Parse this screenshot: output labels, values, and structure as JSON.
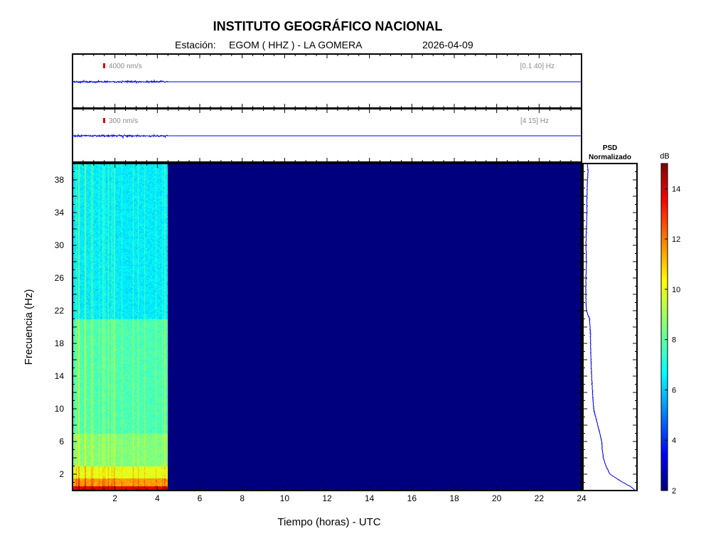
{
  "header": {
    "title": "INSTITUTO GEOGRÁFICO NACIONAL",
    "station_label": "Estación:",
    "station": "EGOM ( HHZ ) - LA GOMERA",
    "date": "2026-04-09"
  },
  "colors": {
    "trace": "#0000ee",
    "scale_marker": "#dd0000",
    "background_field": "#00007f"
  },
  "chart_data": [
    {
      "type": "line",
      "name": "waveform-broadband",
      "scale_label": "4000 nm/s",
      "filter_label": "[0.1 40] Hz",
      "x": [
        0,
        4.45,
        4.5,
        24
      ],
      "data_until_hours": 4.5,
      "xlim": [
        0,
        24
      ]
    },
    {
      "type": "line",
      "name": "waveform-filtered",
      "scale_label": "300 nm/s",
      "filter_label": "[4 15] Hz",
      "x": [
        0,
        4.45,
        4.5,
        24
      ],
      "data_until_hours": 4.5,
      "xlim": [
        0,
        24
      ]
    },
    {
      "type": "heatmap",
      "name": "spectrogram",
      "xlabel": "Tiempo (horas) - UTC",
      "ylabel": "Frecuencia  (Hz)",
      "xlim": [
        0,
        24
      ],
      "ylim": [
        0,
        40
      ],
      "xticks": [
        2,
        4,
        6,
        8,
        10,
        12,
        14,
        16,
        18,
        20,
        22,
        24
      ],
      "yticks": [
        2,
        6,
        10,
        14,
        18,
        22,
        26,
        30,
        34,
        38
      ],
      "data_until_hours": 4.5,
      "colorbar": {
        "label": "dB",
        "range": [
          2,
          15
        ],
        "ticks": [
          2,
          4,
          6,
          8,
          10,
          12,
          14
        ],
        "colormap": "jet"
      }
    },
    {
      "type": "line",
      "name": "psd-normalized",
      "title_line1": "PSD",
      "title_line2": "Normalizado",
      "freq": [
        0,
        0.5,
        1,
        2,
        3,
        4,
        5,
        6,
        7,
        8,
        9,
        10,
        12,
        14,
        16,
        18,
        19,
        20,
        21,
        22,
        23,
        24,
        26,
        28,
        30,
        32,
        34,
        36,
        38,
        39,
        40
      ],
      "value": [
        1.0,
        0.9,
        0.75,
        0.5,
        0.42,
        0.37,
        0.35,
        0.34,
        0.3,
        0.26,
        0.22,
        0.18,
        0.16,
        0.14,
        0.13,
        0.12,
        0.12,
        0.11,
        0.1,
        0.04,
        0.03,
        0.03,
        0.03,
        0.04,
        0.03,
        0.04,
        0.05,
        0.05,
        0.06,
        0.07,
        0.06
      ]
    }
  ]
}
